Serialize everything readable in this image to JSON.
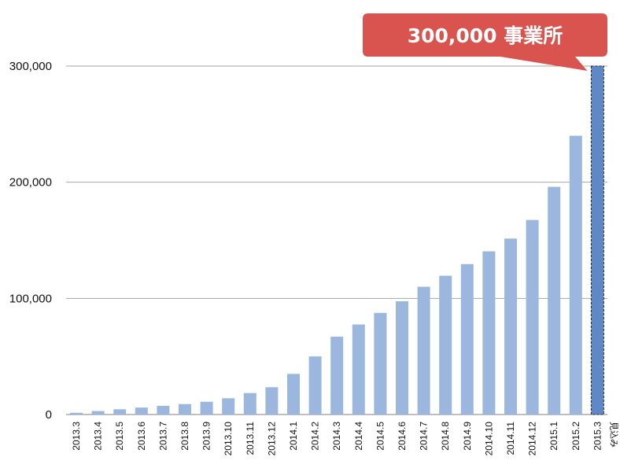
{
  "chart_data": {
    "type": "bar",
    "title": "",
    "xlabel": "",
    "ylabel": "",
    "ylim": [
      0,
      300000
    ],
    "yticks": [
      0,
      100000,
      200000,
      300000
    ],
    "ytick_labels": [
      "0",
      "100,000",
      "200,000",
      "300,000"
    ],
    "grid": "horizontal",
    "categories": [
      "2013.3",
      "2013.4",
      "2013.5",
      "2013.6",
      "2013.7",
      "2013.8",
      "2013.9",
      "2013.10",
      "2013.11",
      "2013.12",
      "2014.1",
      "2014.2",
      "2014.3",
      "2014.4",
      "2014.5",
      "2014.6",
      "2014.7",
      "2014.8",
      "2014.9",
      "2014.10",
      "2014.11",
      "2014.12",
      "2015.1",
      "2015.2",
      "2015.3"
    ],
    "values": [
      1500,
      3000,
      4500,
      6000,
      7500,
      9000,
      11000,
      14000,
      18500,
      23500,
      35000,
      50000,
      67000,
      77500,
      87500,
      97500,
      110000,
      119500,
      129500,
      140500,
      151500,
      167500,
      196000,
      240000,
      300000
    ],
    "highlight_index": 24,
    "highlight_note": "見込み",
    "callout": "300,000 事業所",
    "colors": {
      "bar": "#9bb7dd",
      "highlight": "#5f88c7",
      "callout": "#d9534f",
      "grid": "#a6a6a6"
    }
  }
}
